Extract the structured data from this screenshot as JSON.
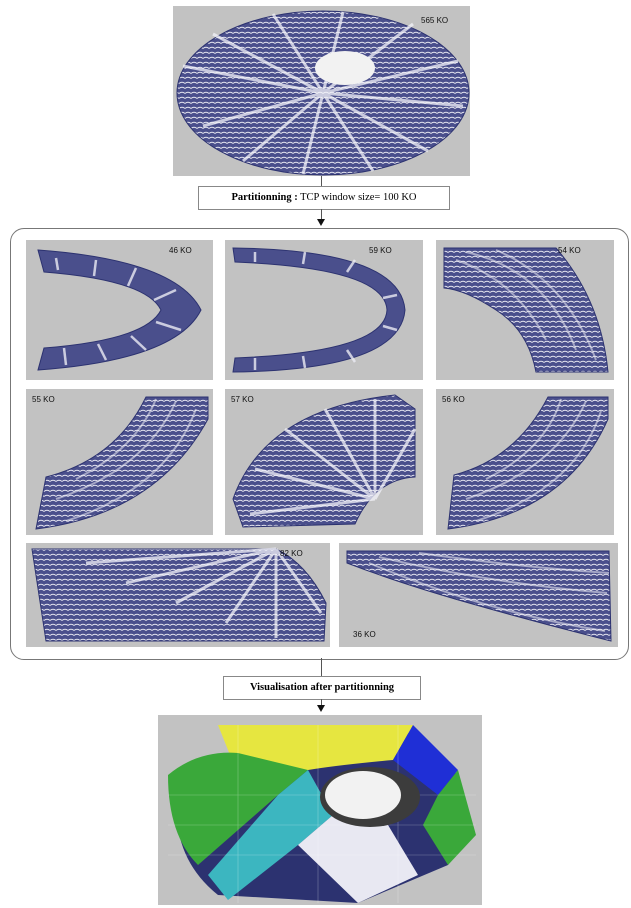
{
  "top_image": {
    "size_label": "565 KO"
  },
  "partition_step": {
    "label_bold": "Partitionning :",
    "label_rest": " TCP window size= 100 KO"
  },
  "partitions": [
    {
      "size_label": "46 KO"
    },
    {
      "size_label": "59 KO"
    },
    {
      "size_label": "54 KO"
    },
    {
      "size_label": "55 KO"
    },
    {
      "size_label": "57 KO"
    },
    {
      "size_label": "56 KO"
    },
    {
      "size_label": "82 KO"
    },
    {
      "size_label": "36 KO"
    }
  ],
  "visualisation_step": {
    "label": "Visualisation after partitionning"
  },
  "colors": {
    "panel_bg": "#c2c2c2",
    "mesh_dark": "#3a3f7a",
    "mesh_light": "#e8e8f2",
    "yellow": "#e6e640",
    "green": "#3aa83a",
    "blue": "#1f2fd6",
    "cyan": "#3cb6c0",
    "navy": "#2c3270",
    "dark": "#3c3c3c"
  }
}
